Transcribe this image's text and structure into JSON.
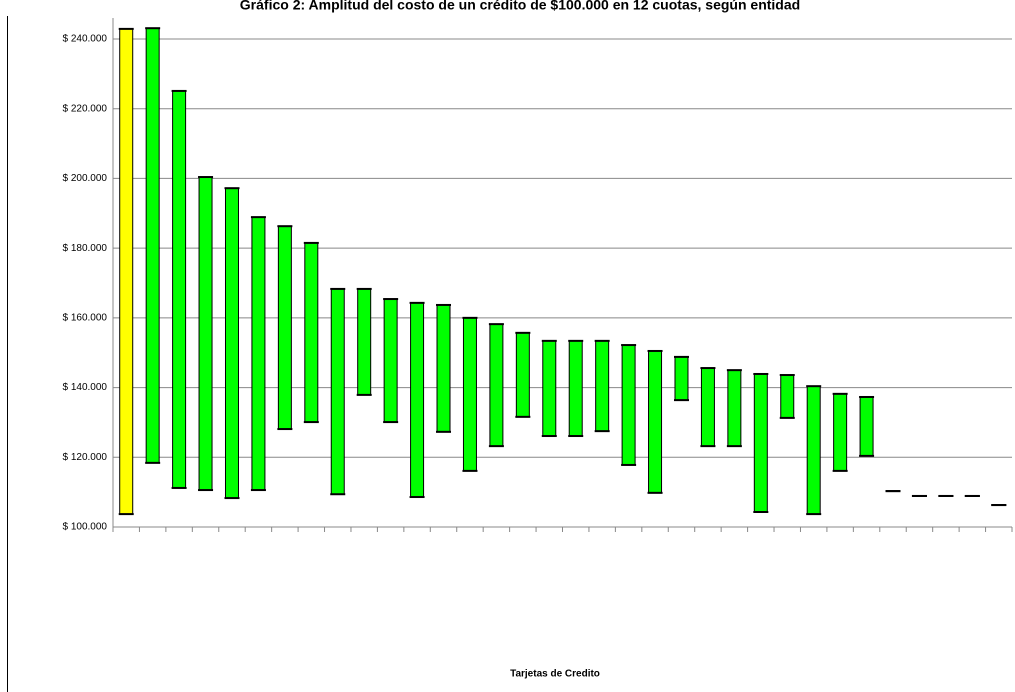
{
  "chart_data": {
    "type": "floating-bar",
    "title": "Gráfico 2: Amplitud del costo de un crédito de $100.000 en 12 cuotas, según entidad",
    "x_label": "Tarjetas de Credito",
    "categories": [
      null,
      null,
      null,
      null,
      null,
      null,
      null,
      null,
      null,
      null,
      null,
      null,
      null,
      null,
      null,
      null,
      null,
      null,
      null,
      null,
      null,
      null,
      null,
      null,
      null,
      null,
      null,
      null,
      null,
      null,
      null,
      null,
      null,
      null
    ],
    "low": [
      103700,
      118400,
      111200,
      110600,
      108300,
      110600,
      128100,
      130100,
      109400,
      137900,
      130100,
      108600,
      127300,
      116100,
      123200,
      131600,
      126100,
      126100,
      127500,
      117800,
      109800,
      136400,
      123200,
      123200,
      104300,
      131300,
      103700,
      116100,
      120400,
      110300,
      108900,
      108900,
      108900,
      106300
    ],
    "high": [
      242900,
      243100,
      225100,
      200400,
      197200,
      188900,
      186300,
      181500,
      168300,
      168300,
      165400,
      164300,
      163700,
      160000,
      158200,
      155700,
      153400,
      153400,
      153400,
      152200,
      150500,
      148800,
      145600,
      145000,
      143900,
      143600,
      140400,
      138200,
      137300,
      110300,
      108900,
      108900,
      108900,
      106300
    ],
    "colors": [
      "#ffff00",
      "#00ff00",
      "#00ff00",
      "#00ff00",
      "#00ff00",
      "#00ff00",
      "#00ff00",
      "#00ff00",
      "#00ff00",
      "#00ff00",
      "#00ff00",
      "#00ff00",
      "#00ff00",
      "#00ff00",
      "#00ff00",
      "#00ff00",
      "#00ff00",
      "#00ff00",
      "#00ff00",
      "#00ff00",
      "#00ff00",
      "#00ff00",
      "#00ff00",
      "#00ff00",
      "#00ff00",
      "#00ff00",
      "#00ff00",
      "#00ff00",
      "#00ff00",
      "#00ff00",
      "#00ff00",
      "#00ff00",
      "#00ff00",
      "#00ff00"
    ],
    "ylim": [
      100000,
      240000
    ],
    "yticks": [
      {
        "value": 100000,
        "label": "$ 100.000"
      },
      {
        "value": 120000,
        "label": "$ 120.000"
      },
      {
        "value": 140000,
        "label": "$ 140.000"
      },
      {
        "value": 160000,
        "label": "$ 160.000"
      },
      {
        "value": 180000,
        "label": "$ 180.000"
      },
      {
        "value": 200000,
        "label": "$ 200.000"
      },
      {
        "value": 220000,
        "label": "$ 220.000"
      },
      {
        "value": 240000,
        "label": "$ 240.000"
      }
    ],
    "grid": true
  }
}
